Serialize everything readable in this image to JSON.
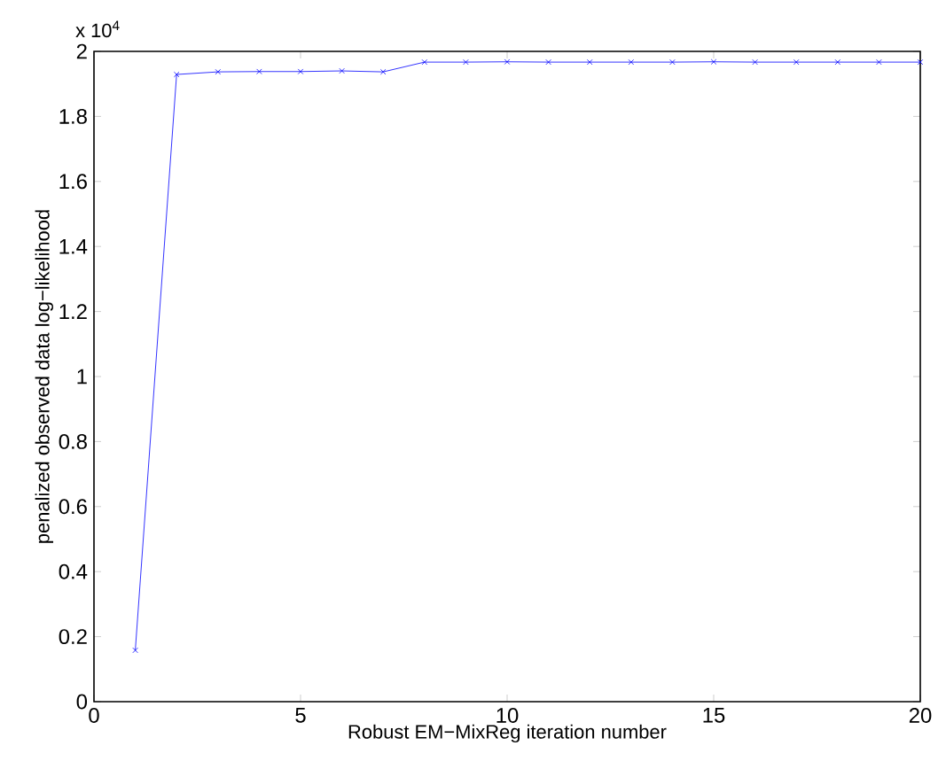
{
  "chart_data": {
    "type": "line",
    "xlabel": "Robust EM−MixReg iteration number",
    "ylabel": "penalized observed data log−likelihood",
    "x": [
      1,
      2,
      3,
      4,
      5,
      6,
      7,
      8,
      9,
      10,
      11,
      12,
      13,
      14,
      15,
      16,
      17,
      18,
      19,
      20
    ],
    "series": [
      {
        "color": "#0000ff",
        "values": [
          0.158,
          1.929,
          1.937,
          1.938,
          1.938,
          1.94,
          1.937,
          1.967,
          1.967,
          1.968,
          1.967,
          1.967,
          1.967,
          1.967,
          1.968,
          1.967,
          1.967,
          1.967,
          1.967,
          1.967
        ]
      }
    ],
    "marker": "cross",
    "line_style": "solid",
    "xlim": [
      0,
      20
    ],
    "xticks": [
      0,
      5,
      10,
      15,
      20
    ],
    "ylim": [
      0,
      2
    ],
    "yticks": [
      0,
      0.2,
      0.4,
      0.6,
      0.8,
      1,
      1.2,
      1.4,
      1.6,
      1.8,
      2
    ],
    "annotations": [
      "x 10$^{4}$"
    ]
  }
}
